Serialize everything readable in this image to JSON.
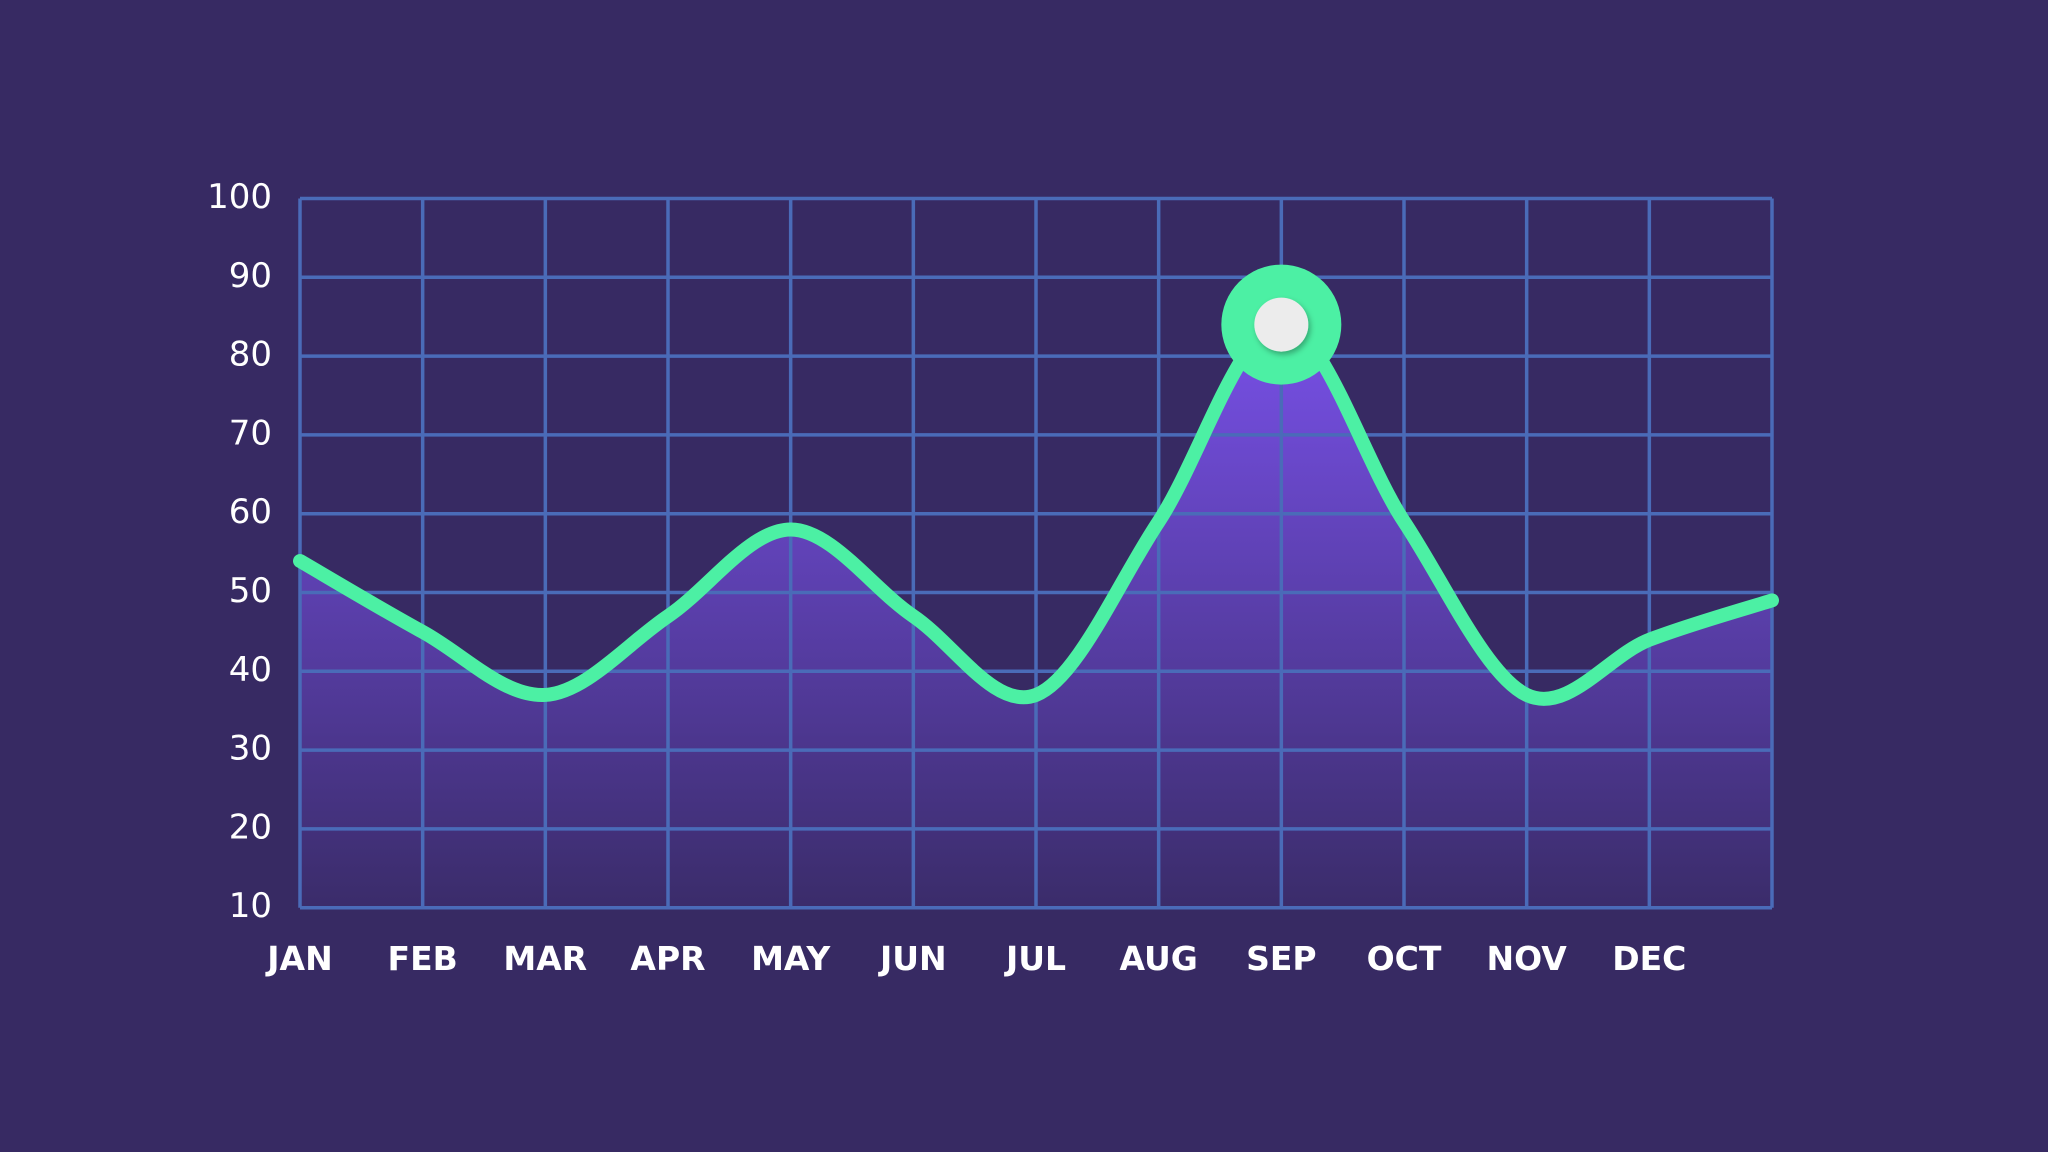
{
  "chart_data": {
    "type": "line",
    "categories": [
      "JAN",
      "FEB",
      "MAR",
      "APR",
      "MAY",
      "JUN",
      "JUL",
      "AUG",
      "SEP",
      "OCT",
      "NOV",
      "DEC",
      null
    ],
    "values": [
      54,
      45,
      37,
      47,
      58,
      47,
      37,
      59,
      84,
      59,
      37,
      44,
      49
    ],
    "color": "#4cf0a4",
    "fill_color": "#7b52ee",
    "grid_color": "#4a6bb8",
    "highlight_index": 8,
    "ylim": [
      10,
      100
    ],
    "yticks": [
      10,
      20,
      30,
      40,
      50,
      60,
      70,
      80,
      90,
      100
    ],
    "grid": true
  }
}
